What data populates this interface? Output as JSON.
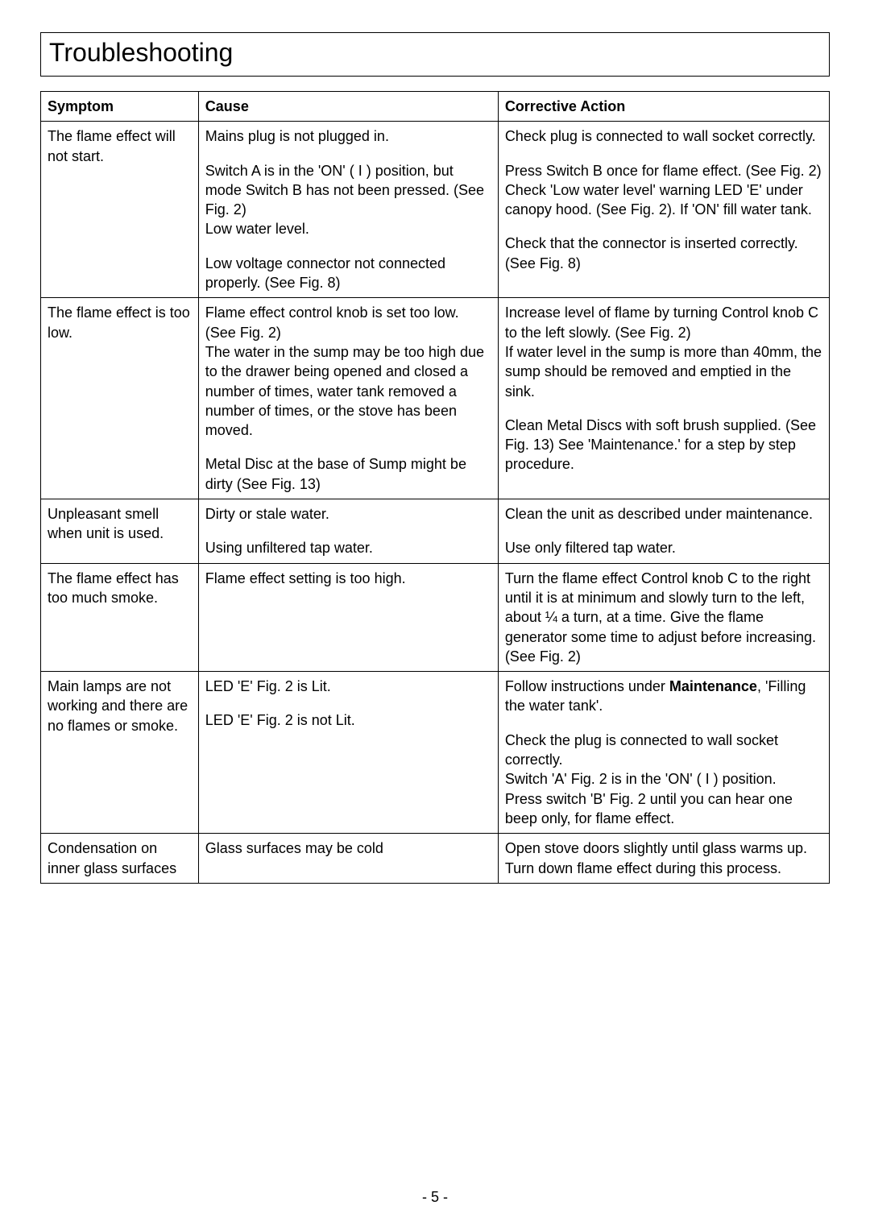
{
  "page": {
    "title": "Troubleshooting",
    "pageNumber": "- 5 -"
  },
  "table": {
    "headers": {
      "symptom": "Symptom",
      "cause": "Cause",
      "action": "Corrective Action"
    },
    "rows": [
      {
        "symptom": "The flame effect will not start.",
        "causes": [
          "Mains plug is not plugged in.",
          "Switch A is in the 'ON' ( I ) position, but mode Switch B has not been pressed. (See Fig. 2)",
          "Low water level.",
          "Low voltage connector not connected properly. (See Fig. 8)"
        ],
        "actions": [
          "Check plug is connected to wall socket correctly.",
          "Press Switch B once for flame effect. (See Fig. 2)",
          "Check 'Low water level' warning LED 'E' under canopy hood. (See Fig. 2). If 'ON' fill water tank.",
          "Check that the connector is inserted correctly. (See Fig. 8)"
        ]
      },
      {
        "symptom": "The flame effect is too low.",
        "causes": [
          "Flame effect control knob is set too low. (See Fig. 2)\nThe water in the sump may be too high due to the drawer being opened and closed a number of times, water tank removed a number of times, or the stove has been moved.",
          "Metal Disc at the base of Sump might be dirty (See Fig. 13)"
        ],
        "actions": [
          "Increase level of flame by turning Control knob C to the left slowly. (See Fig. 2)\nIf water level in the sump is more than 40mm, the sump should be removed and emptied in the sink.",
          "Clean Metal Discs with soft brush supplied. (See Fig. 13) See 'Maintenance.' for a step by step procedure."
        ]
      },
      {
        "symptom": "Unpleasant smell when unit is used.",
        "causes": [
          "Dirty or stale water.",
          "Using unfiltered tap water."
        ],
        "actions": [
          "Clean the unit as described under maintenance.",
          "Use only filtered tap water."
        ]
      },
      {
        "symptom": "The flame effect has too much smoke.",
        "causes": [
          "Flame effect setting is too high."
        ],
        "actions": [
          "Turn the flame effect Control knob C to the right until it is at minimum and slowly turn to the left, about ¼ a turn, at a time. Give the flame generator some time to adjust before increasing. (See Fig. 2)"
        ]
      },
      {
        "symptom": "Main lamps are not working and there are no flames or smoke.",
        "causes": [
          "LED 'E' Fig. 2 is Lit.",
          "LED 'E' Fig. 2 is not Lit."
        ],
        "actions_html": [
          "Follow instructions under <b>Maintenance</b>, 'Filling the water tank'.",
          "Check the plug is connected to wall socket correctly.<br>Switch 'A' Fig. 2 is in the 'ON' ( I ) position.<br>Press switch 'B' Fig. 2 until you can hear one beep only, for flame effect."
        ]
      },
      {
        "symptom": "Condensation on inner glass surfaces",
        "causes": [
          "Glass surfaces may be cold"
        ],
        "actions": [
          "Open stove doors slightly until glass warms up.\nTurn down flame effect during this process."
        ]
      }
    ]
  }
}
